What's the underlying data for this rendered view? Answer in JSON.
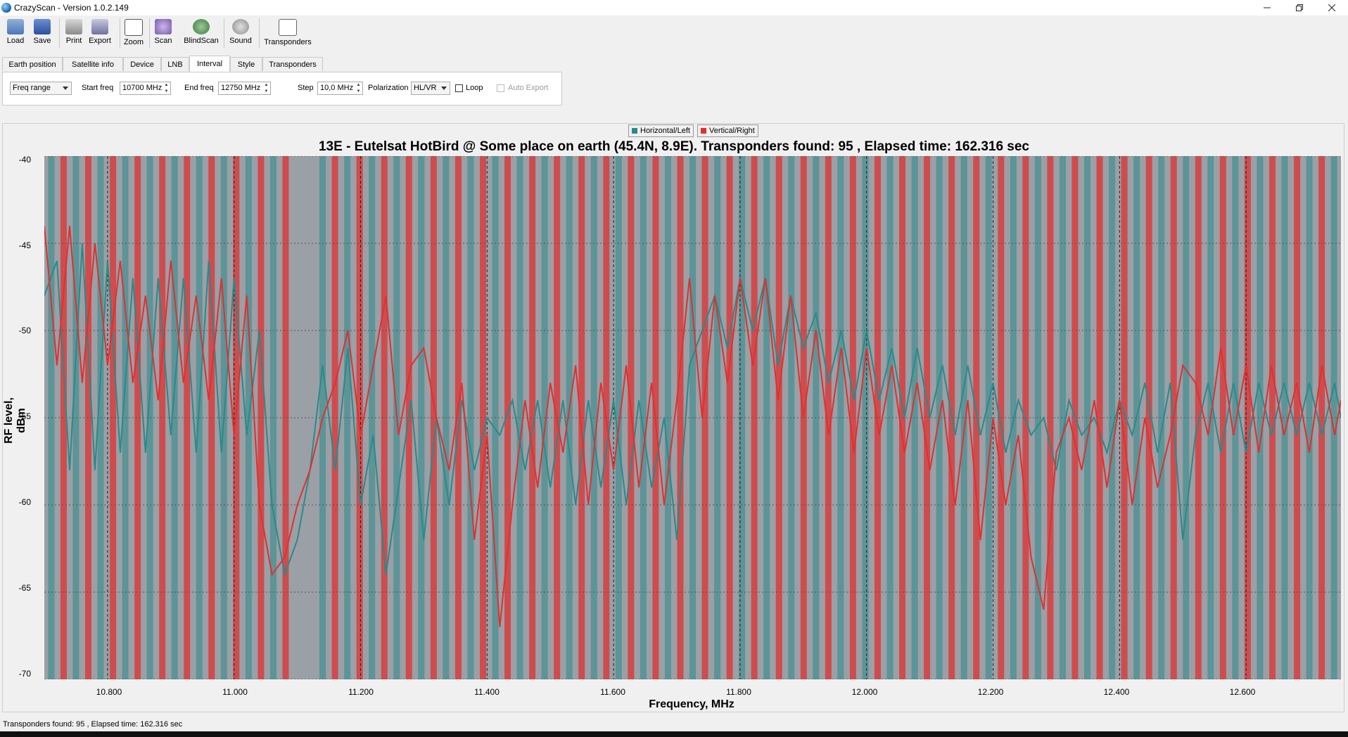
{
  "window": {
    "title": "CrazyScan - Version 1.0.2.149",
    "minimize_icon": "minimize-icon",
    "restore_icon": "restore-icon",
    "close_icon": "close-icon"
  },
  "toolbar": {
    "buttons": [
      {
        "label": "Load",
        "icon": "folder-open-icon"
      },
      {
        "label": "Save",
        "icon": "floppy-disk-icon"
      },
      {
        "label": "Print",
        "icon": "printer-icon"
      },
      {
        "label": "Export",
        "icon": "export-icon"
      },
      {
        "label": "Zoom",
        "icon": "magnifier-icon"
      },
      {
        "label": "Scan",
        "icon": "scan-icon"
      },
      {
        "label": "BlindScan",
        "icon": "satellite-dish-icon"
      },
      {
        "label": "Sound",
        "icon": "speaker-icon"
      },
      {
        "label": "Transponders",
        "icon": "spectrum-icon"
      }
    ]
  },
  "tabs": [
    {
      "label": "Earth position"
    },
    {
      "label": "Satellite info"
    },
    {
      "label": "Device"
    },
    {
      "label": "LNB"
    },
    {
      "label": "Interval",
      "active": true
    },
    {
      "label": "Style"
    },
    {
      "label": "Transponders"
    }
  ],
  "interval": {
    "mode": "Freq range",
    "start_label": "Start freq",
    "start_value": "10700 MHz",
    "end_label": "End freq",
    "end_value": "12750 MHz",
    "step_label": "Step",
    "step_value": "10,0 MHz",
    "polarization_label": "Polarization",
    "polarization_value": "HL/VR",
    "loop_label": "Loop",
    "loop_checked": false,
    "auto_export_label": "Auto Export",
    "auto_export_enabled": false
  },
  "chart_legend": {
    "horizontal": "Horizontal/Left",
    "vertical": "Vertical/Right"
  },
  "status": {
    "text": "Transponders found: 95 , Elapsed time: 162.316 sec"
  },
  "colors": {
    "horizontal": "#2a8a8a",
    "vertical": "#e03030",
    "plot_bg": "#9aa0a6"
  },
  "chart_data": {
    "type": "line",
    "title": "13E - Eutelsat HotBird @ Some place on earth (45.4N, 8.9E). Transponders found: 95 , Elapsed time: 162.316 sec",
    "xlabel": "Frequency, MHz",
    "ylabel": "RF level, dBm",
    "xlim": [
      10700,
      12750
    ],
    "ylim": [
      -70,
      -40
    ],
    "x_ticks": [
      "10.800",
      "11.000",
      "11.200",
      "11.400",
      "11.600",
      "11.800",
      "12.000",
      "12.200",
      "12.400",
      "12.600"
    ],
    "y_ticks": [
      "-40",
      "-45",
      "-50",
      "-55",
      "-60",
      "-65",
      "-70"
    ],
    "grid": true,
    "legend_position": "top-center",
    "series": [
      {
        "name": "Horizontal/Left",
        "x": [
          10700,
          10720,
          10740,
          10760,
          10780,
          10800,
          10820,
          10840,
          10860,
          10880,
          10900,
          10920,
          10940,
          10960,
          10980,
          11000,
          11020,
          11040,
          11060,
          11080,
          11100,
          11120,
          11140,
          11160,
          11180,
          11200,
          11220,
          11240,
          11260,
          11280,
          11300,
          11320,
          11340,
          11360,
          11380,
          11400,
          11420,
          11440,
          11460,
          11480,
          11500,
          11520,
          11540,
          11560,
          11580,
          11600,
          11620,
          11640,
          11660,
          11680,
          11700,
          11720,
          11740,
          11760,
          11780,
          11800,
          11820,
          11840,
          11860,
          11880,
          11900,
          11920,
          11940,
          11960,
          11980,
          12000,
          12020,
          12040,
          12060,
          12080,
          12100,
          12120,
          12140,
          12160,
          12180,
          12200,
          12220,
          12240,
          12260,
          12280,
          12300,
          12320,
          12340,
          12360,
          12380,
          12400,
          12420,
          12440,
          12460,
          12480,
          12500,
          12520,
          12540,
          12560,
          12580,
          12600,
          12620,
          12640,
          12660,
          12680,
          12700,
          12720,
          12740,
          12750
        ],
        "values": [
          -48,
          -46,
          -58,
          -45,
          -58,
          -46,
          -57,
          -47,
          -57,
          -47,
          -56,
          -47,
          -57,
          -46,
          -57,
          -47,
          -56,
          -50,
          -60,
          -64,
          -62,
          -58,
          -52,
          -58,
          -51,
          -60,
          -56,
          -64,
          -59,
          -54,
          -62,
          -55,
          -60,
          -54,
          -58,
          -55,
          -56,
          -54,
          -58,
          -54,
          -59,
          -54,
          -60,
          -54,
          -59,
          -54,
          -60,
          -54,
          -59,
          -55,
          -62,
          -52,
          -50,
          -48,
          -51,
          -47,
          -50,
          -47,
          -52,
          -48,
          -51,
          -49,
          -53,
          -50,
          -54,
          -50,
          -54,
          -51,
          -55,
          -51,
          -55,
          -52,
          -56,
          -52,
          -56,
          -53,
          -57,
          -54,
          -56,
          -55,
          -58,
          -54,
          -56,
          -55,
          -57,
          -54,
          -56,
          -53,
          -57,
          -53,
          -62,
          -56,
          -53,
          -57,
          -53,
          -57,
          -53,
          -56,
          -53,
          -56,
          -53,
          -56,
          -53,
          -55
        ]
      },
      {
        "name": "Vertical/Right",
        "x": [
          10700,
          10720,
          10740,
          10760,
          10780,
          10800,
          10820,
          10840,
          10860,
          10880,
          10900,
          10920,
          10940,
          10960,
          10980,
          11000,
          11020,
          11040,
          11060,
          11080,
          11100,
          11120,
          11140,
          11160,
          11180,
          11200,
          11220,
          11240,
          11260,
          11280,
          11300,
          11320,
          11340,
          11360,
          11380,
          11400,
          11420,
          11440,
          11460,
          11480,
          11500,
          11520,
          11540,
          11560,
          11580,
          11600,
          11620,
          11640,
          11660,
          11680,
          11700,
          11720,
          11740,
          11760,
          11780,
          11800,
          11820,
          11840,
          11860,
          11880,
          11900,
          11920,
          11940,
          11960,
          11980,
          12000,
          12020,
          12040,
          12060,
          12080,
          12100,
          12120,
          12140,
          12160,
          12180,
          12200,
          12220,
          12240,
          12260,
          12280,
          12300,
          12320,
          12340,
          12360,
          12380,
          12400,
          12420,
          12440,
          12460,
          12480,
          12500,
          12520,
          12540,
          12560,
          12580,
          12600,
          12620,
          12640,
          12660,
          12680,
          12700,
          12720,
          12740,
          12750
        ],
        "values": [
          -44,
          -52,
          -44,
          -53,
          -45,
          -52,
          -46,
          -53,
          -48,
          -54,
          -46,
          -53,
          -48,
          -54,
          -47,
          -56,
          -48,
          -60,
          -64,
          -63,
          -60,
          -58,
          -55,
          -53,
          -50,
          -56,
          -52,
          -48,
          -56,
          -52,
          -51,
          -55,
          -58,
          -53,
          -62,
          -56,
          -67,
          -60,
          -54,
          -59,
          -53,
          -57,
          -52,
          -60,
          -53,
          -58,
          -52,
          -59,
          -53,
          -60,
          -54,
          -47,
          -55,
          -48,
          -53,
          -47,
          -52,
          -47,
          -54,
          -48,
          -55,
          -50,
          -56,
          -51,
          -57,
          -51,
          -56,
          -52,
          -57,
          -53,
          -58,
          -54,
          -60,
          -54,
          -62,
          -55,
          -60,
          -56,
          -63,
          -66,
          -57,
          -55,
          -58,
          -54,
          -59,
          -54,
          -60,
          -55,
          -59,
          -56,
          -52,
          -53,
          -56,
          -51,
          -56,
          -52,
          -57,
          -52,
          -56,
          -53,
          -57,
          -52,
          -56,
          -54
        ]
      }
    ]
  }
}
